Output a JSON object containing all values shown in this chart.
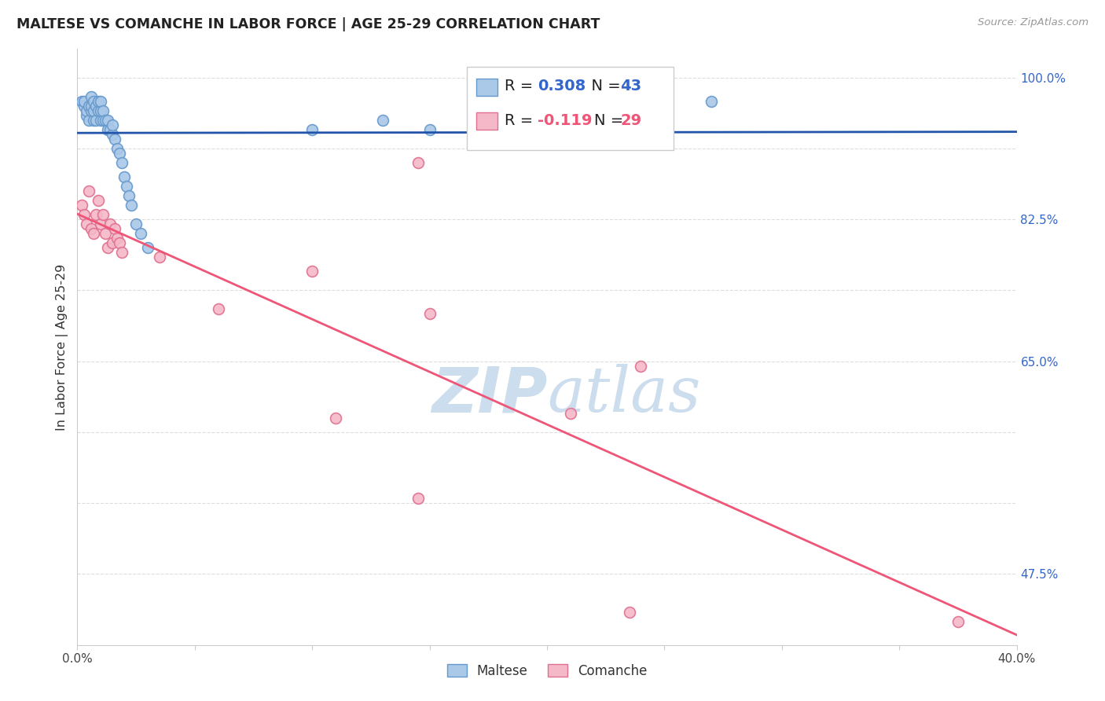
{
  "title": "MALTESE VS COMANCHE IN LABOR FORCE | AGE 25-29 CORRELATION CHART",
  "source": "Source: ZipAtlas.com",
  "ylabel": "In Labor Force | Age 25-29",
  "xmin": 0.0,
  "xmax": 0.4,
  "ymin": 0.4,
  "ymax": 1.03,
  "ytick_positions": [
    0.475,
    0.55,
    0.625,
    0.7,
    0.775,
    0.85,
    0.925,
    1.0
  ],
  "ytick_labels_right": [
    "47.5%",
    "",
    "",
    "65.0%",
    "",
    "82.5%",
    "",
    "100.0%"
  ],
  "xticks": [
    0.0,
    0.05,
    0.1,
    0.15,
    0.2,
    0.25,
    0.3,
    0.35,
    0.4
  ],
  "xtick_labels": [
    "0.0%",
    "",
    "",
    "",
    "",
    "",
    "",
    "",
    "40.0%"
  ],
  "grid_color": "#dddddd",
  "background_color": "#ffffff",
  "maltese_color": "#aac8e8",
  "comanche_color": "#f4b8c8",
  "maltese_edge_color": "#6699cc",
  "comanche_edge_color": "#e07090",
  "trend_maltese_color": "#2255aa",
  "trend_comanche_color": "#ee5577",
  "watermark_color": "#ccdded",
  "marker_size": 100,
  "maltese_x": [
    0.002,
    0.003,
    0.003,
    0.004,
    0.004,
    0.005,
    0.005,
    0.006,
    0.006,
    0.006,
    0.007,
    0.007,
    0.007,
    0.008,
    0.008,
    0.009,
    0.009,
    0.01,
    0.01,
    0.01,
    0.011,
    0.011,
    0.012,
    0.013,
    0.013,
    0.014,
    0.015,
    0.015,
    0.016,
    0.017,
    0.018,
    0.019,
    0.02,
    0.021,
    0.022,
    0.023,
    0.025,
    0.027,
    0.03,
    0.1,
    0.13,
    0.15,
    0.27
  ],
  "maltese_y": [
    0.975,
    0.97,
    0.975,
    0.96,
    0.965,
    0.955,
    0.97,
    0.965,
    0.97,
    0.98,
    0.955,
    0.965,
    0.975,
    0.955,
    0.97,
    0.965,
    0.975,
    0.955,
    0.965,
    0.975,
    0.955,
    0.965,
    0.955,
    0.945,
    0.955,
    0.945,
    0.94,
    0.95,
    0.935,
    0.925,
    0.92,
    0.91,
    0.895,
    0.885,
    0.875,
    0.865,
    0.845,
    0.835,
    0.82,
    0.945,
    0.955,
    0.945,
    0.975
  ],
  "comanche_x": [
    0.002,
    0.003,
    0.004,
    0.005,
    0.006,
    0.007,
    0.008,
    0.009,
    0.01,
    0.011,
    0.012,
    0.013,
    0.014,
    0.015,
    0.016,
    0.017,
    0.018,
    0.019,
    0.035,
    0.06,
    0.1,
    0.11,
    0.145,
    0.15,
    0.21,
    0.24,
    0.145,
    0.235,
    0.375
  ],
  "comanche_y": [
    0.865,
    0.855,
    0.845,
    0.88,
    0.84,
    0.835,
    0.855,
    0.87,
    0.845,
    0.855,
    0.835,
    0.82,
    0.845,
    0.825,
    0.84,
    0.83,
    0.825,
    0.815,
    0.81,
    0.755,
    0.795,
    0.64,
    0.91,
    0.75,
    0.645,
    0.695,
    0.555,
    0.435,
    0.425
  ]
}
